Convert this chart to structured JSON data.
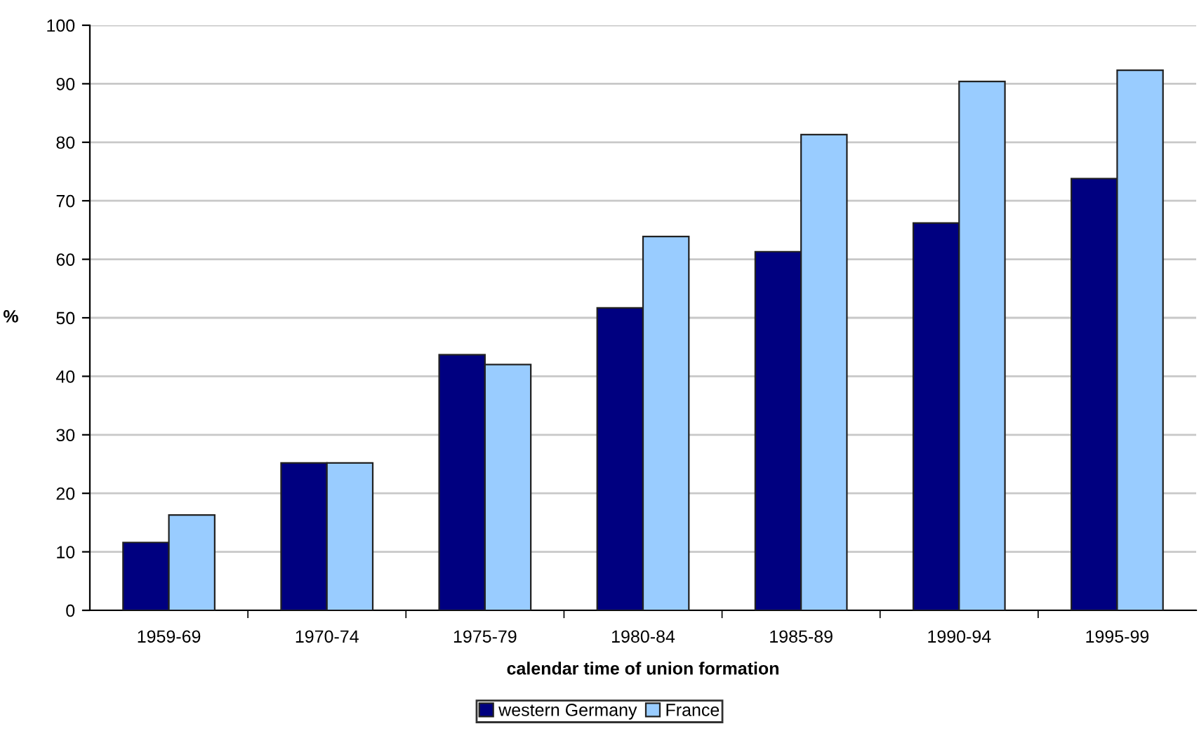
{
  "chart_data": {
    "type": "bar",
    "xlabel": "calendar time of union formation",
    "ylabel": "%",
    "categories": [
      "1959-69",
      "1970-74",
      "1975-79",
      "1980-84",
      "1985-89",
      "1990-94",
      "1995-99"
    ],
    "series": [
      {
        "name": "western Germany",
        "color": "#000080",
        "values": [
          11.6,
          25.2,
          43.7,
          51.7,
          61.3,
          66.2,
          73.8
        ]
      },
      {
        "name": "France",
        "color": "#99ccff",
        "values": [
          16.3,
          25.2,
          42.0,
          63.9,
          81.3,
          90.4,
          92.3
        ]
      }
    ],
    "ylim": [
      0,
      100
    ],
    "yticks": [
      0,
      10,
      20,
      30,
      40,
      50,
      60,
      70,
      80,
      90,
      100
    ],
    "grid": "y",
    "legend": "bottom"
  }
}
